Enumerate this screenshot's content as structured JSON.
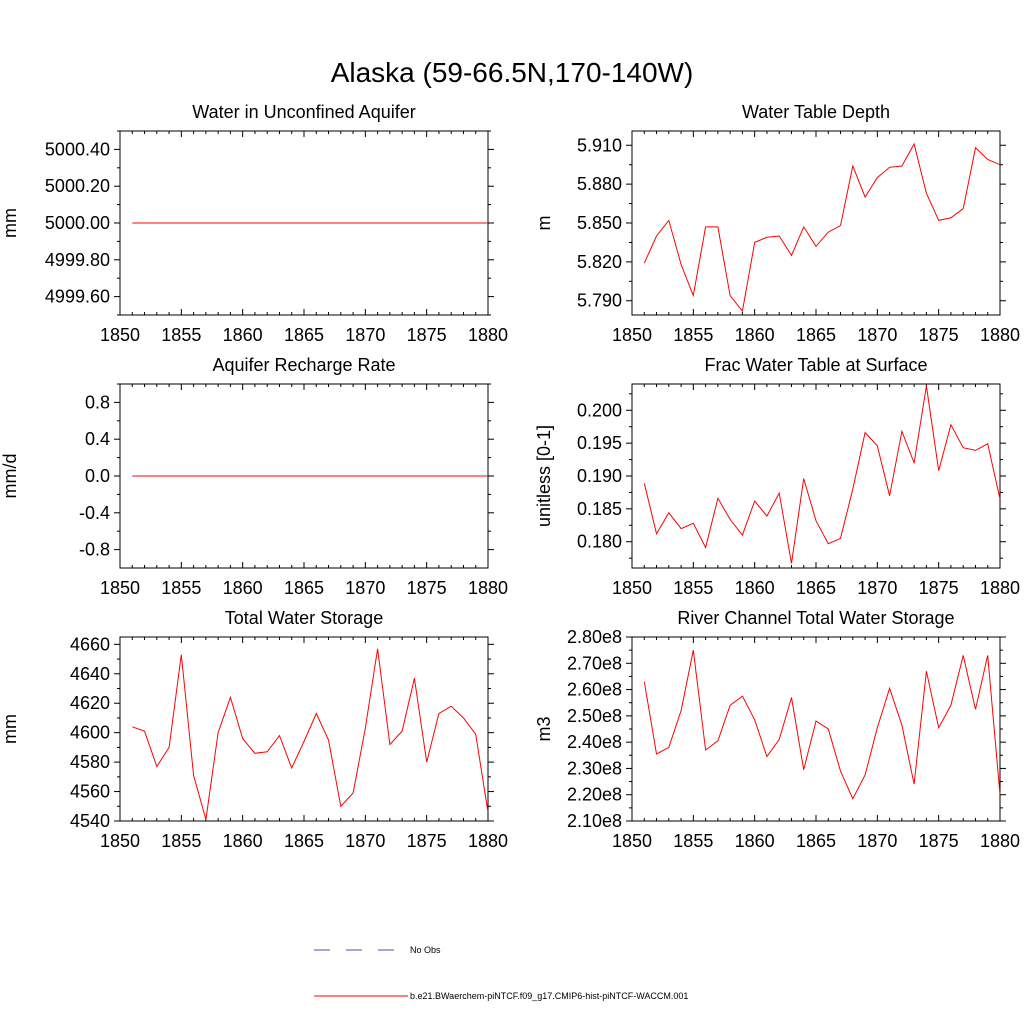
{
  "title": "Alaska (59-66.5N,170-140W)",
  "legend": {
    "obs_label": "No Obs",
    "obs_color": "#4b4bb0",
    "model_label": "b.e21.BWaerchem-piNTCF.f09_g17.CMIP6-hist-piNTCF-WACCM.001",
    "model_color": "#ff0000"
  },
  "chart_data": [
    {
      "type": "line",
      "title": "Water in Unconfined Aquifer",
      "ylabel": "mm",
      "xlim": [
        1850,
        1880
      ],
      "ylim": [
        4999.5,
        5000.5
      ],
      "xticks": [
        1850,
        1855,
        1860,
        1865,
        1870,
        1875,
        1880
      ],
      "yticks": [
        4999.6,
        4999.8,
        5000.0,
        5000.2,
        5000.4
      ],
      "ytick_labels": [
        "4999.60",
        "4999.80",
        "5000.00",
        "5000.20",
        "5000.40"
      ],
      "x": [
        1851,
        1852,
        1853,
        1854,
        1855,
        1856,
        1857,
        1858,
        1859,
        1860,
        1861,
        1862,
        1863,
        1864,
        1865,
        1866,
        1867,
        1868,
        1869,
        1870,
        1871,
        1872,
        1873,
        1874,
        1875,
        1876,
        1877,
        1878,
        1879,
        1880
      ],
      "series": [
        {
          "values": [
            5000,
            5000,
            5000,
            5000,
            5000,
            5000,
            5000,
            5000,
            5000,
            5000,
            5000,
            5000,
            5000,
            5000,
            5000,
            5000,
            5000,
            5000,
            5000,
            5000,
            5000,
            5000,
            5000,
            5000,
            5000,
            5000,
            5000,
            5000,
            5000,
            5000
          ]
        }
      ]
    },
    {
      "type": "line",
      "title": "Water Table Depth",
      "ylabel": "m",
      "xlim": [
        1850,
        1880
      ],
      "ylim": [
        5.779,
        5.921
      ],
      "xticks": [
        1850,
        1855,
        1860,
        1865,
        1870,
        1875,
        1880
      ],
      "yticks": [
        5.79,
        5.82,
        5.85,
        5.88,
        5.91
      ],
      "ytick_labels": [
        "5.790",
        "5.820",
        "5.850",
        "5.880",
        "5.910"
      ],
      "x": [
        1851,
        1852,
        1853,
        1854,
        1855,
        1856,
        1857,
        1858,
        1859,
        1860,
        1861,
        1862,
        1863,
        1864,
        1865,
        1866,
        1867,
        1868,
        1869,
        1870,
        1871,
        1872,
        1873,
        1874,
        1875,
        1876,
        1877,
        1878,
        1879,
        1880
      ],
      "series": [
        {
          "values": [
            5.819,
            5.84,
            5.852,
            5.818,
            5.794,
            5.847,
            5.847,
            5.794,
            5.782,
            5.835,
            5.839,
            5.84,
            5.825,
            5.847,
            5.832,
            5.843,
            5.848,
            5.894,
            5.87,
            5.885,
            5.893,
            5.894,
            5.911,
            5.873,
            5.852,
            5.854,
            5.861,
            5.908,
            5.899,
            5.895
          ]
        }
      ]
    },
    {
      "type": "line",
      "title": "Aquifer Recharge Rate",
      "ylabel": "mm/d",
      "xlim": [
        1850,
        1880
      ],
      "ylim": [
        -1.0,
        1.0
      ],
      "xticks": [
        1850,
        1855,
        1860,
        1865,
        1870,
        1875,
        1880
      ],
      "yticks": [
        -0.8,
        -0.4,
        0.0,
        0.4,
        0.8
      ],
      "ytick_labels": [
        "-0.8",
        "-0.4",
        "0.0",
        "0.4",
        "0.8"
      ],
      "x": [
        1851,
        1852,
        1853,
        1854,
        1855,
        1856,
        1857,
        1858,
        1859,
        1860,
        1861,
        1862,
        1863,
        1864,
        1865,
        1866,
        1867,
        1868,
        1869,
        1870,
        1871,
        1872,
        1873,
        1874,
        1875,
        1876,
        1877,
        1878,
        1879,
        1880
      ],
      "series": [
        {
          "values": [
            0,
            0,
            0,
            0,
            0,
            0,
            0,
            0,
            0,
            0,
            0,
            0,
            0,
            0,
            0,
            0,
            0,
            0,
            0,
            0,
            0,
            0,
            0,
            0,
            0,
            0,
            0,
            0,
            0,
            0
          ]
        }
      ]
    },
    {
      "type": "line",
      "title": "Frac Water Table at Surface",
      "ylabel": "unitless [0-1]",
      "xlim": [
        1850,
        1880
      ],
      "ylim": [
        0.176,
        0.204
      ],
      "xticks": [
        1850,
        1855,
        1860,
        1865,
        1870,
        1875,
        1880
      ],
      "yticks": [
        0.18,
        0.185,
        0.19,
        0.195,
        0.2
      ],
      "ytick_labels": [
        "0.180",
        "0.185",
        "0.190",
        "0.195",
        "0.200"
      ],
      "x": [
        1851,
        1852,
        1853,
        1854,
        1855,
        1856,
        1857,
        1858,
        1859,
        1860,
        1861,
        1862,
        1863,
        1864,
        1865,
        1866,
        1867,
        1868,
        1869,
        1870,
        1871,
        1872,
        1873,
        1874,
        1875,
        1876,
        1877,
        1878,
        1879,
        1880
      ],
      "series": [
        {
          "values": [
            0.1889,
            0.1812,
            0.1844,
            0.182,
            0.1828,
            0.1791,
            0.1866,
            0.1834,
            0.181,
            0.1862,
            0.1839,
            0.1874,
            0.1767,
            0.1896,
            0.1832,
            0.1797,
            0.1805,
            0.188,
            0.1966,
            0.1946,
            0.187,
            0.1968,
            0.192,
            0.2037,
            0.1908,
            0.1978,
            0.1943,
            0.1939,
            0.1949,
            0.1865
          ]
        }
      ]
    },
    {
      "type": "line",
      "title": "Total Water Storage",
      "ylabel": "mm",
      "xlim": [
        1850,
        1880
      ],
      "ylim": [
        4540,
        4665
      ],
      "xticks": [
        1850,
        1855,
        1860,
        1865,
        1870,
        1875,
        1880
      ],
      "yticks": [
        4540,
        4560,
        4580,
        4600,
        4620,
        4640,
        4660
      ],
      "ytick_labels": [
        "4540",
        "4560",
        "4580",
        "4600",
        "4620",
        "4640",
        "4660"
      ],
      "x": [
        1851,
        1852,
        1853,
        1854,
        1855,
        1856,
        1857,
        1858,
        1859,
        1860,
        1861,
        1862,
        1863,
        1864,
        1865,
        1866,
        1867,
        1868,
        1869,
        1870,
        1871,
        1872,
        1873,
        1874,
        1875,
        1876,
        1877,
        1878,
        1879,
        1880
      ],
      "series": [
        {
          "values": [
            4604,
            4601,
            4577,
            4590,
            4653,
            4571,
            4541,
            4600,
            4624,
            4596,
            4586,
            4587,
            4598,
            4576,
            4594,
            4613,
            4595,
            4550,
            4559,
            4603,
            4657,
            4592,
            4601,
            4637,
            4580,
            4613,
            4618,
            4610,
            4599,
            4546
          ]
        }
      ]
    },
    {
      "type": "line",
      "title": "River Channel Total Water Storage",
      "ylabel": "m3",
      "xlim": [
        1850,
        1880
      ],
      "ylim": [
        210000000.0,
        280000000.0
      ],
      "xticks": [
        1850,
        1855,
        1860,
        1865,
        1870,
        1875,
        1880
      ],
      "yticks": [
        210000000.0,
        220000000.0,
        230000000.0,
        240000000.0,
        250000000.0,
        260000000.0,
        270000000.0,
        280000000.0
      ],
      "ytick_labels": [
        "2.10e8",
        "2.20e8",
        "2.30e8",
        "2.40e8",
        "2.50e8",
        "2.60e8",
        "2.70e8",
        "2.80e8"
      ],
      "x": [
        1851,
        1852,
        1853,
        1854,
        1855,
        1856,
        1857,
        1858,
        1859,
        1860,
        1861,
        1862,
        1863,
        1864,
        1865,
        1866,
        1867,
        1868,
        1869,
        1870,
        1871,
        1872,
        1873,
        1874,
        1875,
        1876,
        1877,
        1878,
        1879,
        1880
      ],
      "series": [
        {
          "values": [
            263000000,
            235500000,
            238000000,
            252000000,
            275000000,
            237000000,
            240500000,
            254000000,
            257500000,
            248500000,
            234500000,
            241000000,
            257000000,
            229500000,
            248000000,
            245000000,
            229000000,
            218500000,
            227500000,
            245500000,
            260500000,
            246500000,
            224000000,
            267000000,
            245500000,
            254000000,
            273000000,
            252500000,
            273000000,
            220000000
          ]
        }
      ]
    }
  ]
}
